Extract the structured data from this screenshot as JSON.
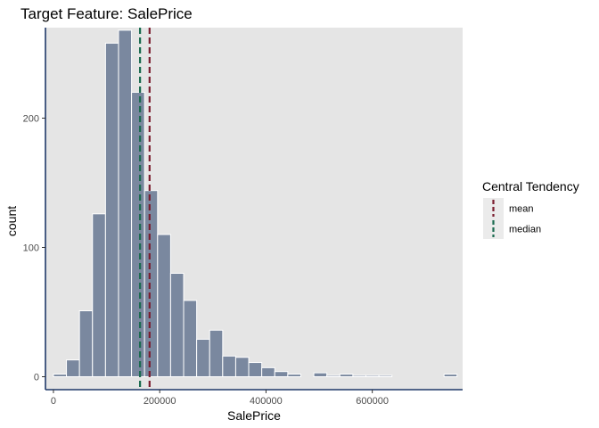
{
  "chart_data": {
    "type": "histogram",
    "title": "Target Feature: SalePrice",
    "xlabel": "SalePrice",
    "ylabel": "count",
    "xlim": [
      -15000,
      770000
    ],
    "ylim": [
      -10,
      270
    ],
    "xticks": [
      0,
      200000,
      400000,
      600000
    ],
    "xtick_labels": [
      "0",
      "200000",
      "400000",
      "600000"
    ],
    "yticks": [
      0,
      100,
      200
    ],
    "ytick_labels": [
      "0",
      "100",
      "200"
    ],
    "bin_width": 24500,
    "bins": [
      {
        "center": 12250,
        "count": 2
      },
      {
        "center": 36750,
        "count": 13
      },
      {
        "center": 61250,
        "count": 51
      },
      {
        "center": 85750,
        "count": 126
      },
      {
        "center": 110250,
        "count": 258
      },
      {
        "center": 134750,
        "count": 268
      },
      {
        "center": 159250,
        "count": 220
      },
      {
        "center": 183750,
        "count": 144
      },
      {
        "center": 208250,
        "count": 110
      },
      {
        "center": 232750,
        "count": 80
      },
      {
        "center": 257250,
        "count": 59
      },
      {
        "center": 281750,
        "count": 29
      },
      {
        "center": 306250,
        "count": 36
      },
      {
        "center": 330750,
        "count": 16
      },
      {
        "center": 355250,
        "count": 15
      },
      {
        "center": 379750,
        "count": 11
      },
      {
        "center": 404250,
        "count": 7
      },
      {
        "center": 428750,
        "count": 4
      },
      {
        "center": 453250,
        "count": 2
      },
      {
        "center": 502250,
        "count": 3
      },
      {
        "center": 526750,
        "count": 1
      },
      {
        "center": 551250,
        "count": 2
      },
      {
        "center": 575750,
        "count": 1
      },
      {
        "center": 600250,
        "count": 1
      },
      {
        "center": 624750,
        "count": 1
      },
      {
        "center": 747250,
        "count": 2
      }
    ],
    "reference_lines": [
      {
        "name": "mean",
        "value": 180921,
        "color": "#7b1d2f"
      },
      {
        "name": "median",
        "value": 163000,
        "color": "#1a6b4f"
      }
    ],
    "legend": {
      "title": "Central Tendency",
      "position": "right",
      "entries": [
        "mean",
        "median"
      ]
    },
    "colors": {
      "bar_fill": "#7a889f",
      "bar_edge": "#ffffff",
      "panel_bg": "#e5e5e5",
      "axis_line": "#1f3868"
    },
    "grid": false
  }
}
